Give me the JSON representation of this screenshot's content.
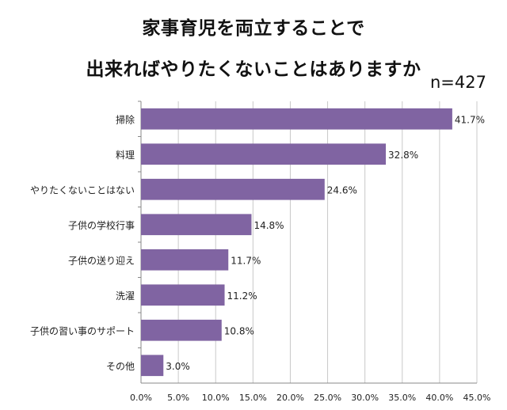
{
  "chart_data": {
    "type": "bar",
    "orientation": "horizontal",
    "title_line1": "家事育児を両立することで",
    "title_line2": "出来ればやりたくないことはありますか",
    "sample_size": "n=427",
    "categories": [
      "掃除",
      "料理",
      "やりたくないことはない",
      "子供の学校行事",
      "子供の送り迎え",
      "洗濯",
      "子供の習い事のサポート",
      "その他"
    ],
    "values": [
      41.7,
      32.8,
      24.6,
      14.8,
      11.7,
      11.2,
      10.8,
      3.0
    ],
    "value_labels": [
      "41.7%",
      "32.8%",
      "24.6%",
      "14.8%",
      "11.7%",
      "11.2%",
      "10.8%",
      "3.0%"
    ],
    "x_ticks": [
      "0.0%",
      "5.0%",
      "10.0%",
      "15.0%",
      "20.0%",
      "25.0%",
      "30.0%",
      "35.0%",
      "40.0%",
      "45.0%"
    ],
    "xlim": [
      0,
      45
    ],
    "bar_color": "#8064a2",
    "grid": "vertical"
  }
}
